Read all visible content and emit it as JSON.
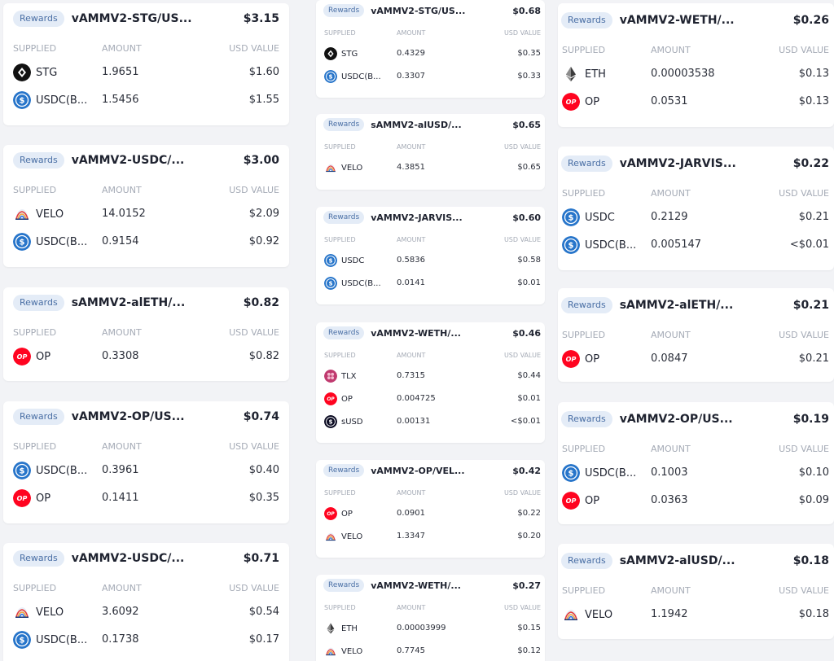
{
  "labels": {
    "badge": "Rewards",
    "supplied": "SUPPLIED",
    "amount": "AMOUNT",
    "usd_value": "USD VALUE"
  },
  "colors": {
    "badge_bg": "#e4ecf7",
    "badge_text": "#4a6fa5",
    "op": "#ff0420",
    "usdc": "#2775ca",
    "header_gray": "#a5abb6"
  },
  "columns": [
    {
      "cards": [
        {
          "pool": "vAMMV2-STG/US...",
          "total": "$3.15",
          "rows": [
            {
              "icon": "stg-icon",
              "token": "STG",
              "amount": "1.9651",
              "usd": "$1.60"
            },
            {
              "icon": "usdc-icon",
              "token": "USDC(B...",
              "amount": "1.5456",
              "usd": "$1.55"
            }
          ]
        },
        {
          "pool": "vAMMV2-USDC/...",
          "total": "$3.00",
          "rows": [
            {
              "icon": "velo-icon",
              "token": "VELO",
              "amount": "14.0152",
              "usd": "$2.09"
            },
            {
              "icon": "usdc-icon",
              "token": "USDC(B...",
              "amount": "0.9154",
              "usd": "$0.92"
            }
          ]
        },
        {
          "pool": "sAMMV2-alETH/...",
          "total": "$0.82",
          "rows": [
            {
              "icon": "op-icon",
              "token": "OP",
              "amount": "0.3308",
              "usd": "$0.82"
            }
          ]
        },
        {
          "pool": "vAMMV2-OP/US...",
          "total": "$0.74",
          "rows": [
            {
              "icon": "usdc-icon",
              "token": "USDC(B...",
              "amount": "0.3961",
              "usd": "$0.40"
            },
            {
              "icon": "op-icon",
              "token": "OP",
              "amount": "0.1411",
              "usd": "$0.35"
            }
          ]
        },
        {
          "pool": "vAMMV2-USDC/...",
          "total": "$0.71",
          "rows": [
            {
              "icon": "velo-icon",
              "token": "VELO",
              "amount": "3.6092",
              "usd": "$0.54"
            },
            {
              "icon": "usdc-icon",
              "token": "USDC(B...",
              "amount": "0.1738",
              "usd": "$0.17"
            }
          ]
        }
      ]
    },
    {
      "cards": [
        {
          "pool": "vAMMV2-STG/US...",
          "total": "$0.68",
          "rows": [
            {
              "icon": "stg-icon",
              "token": "STG",
              "amount": "0.4329",
              "usd": "$0.35"
            },
            {
              "icon": "usdc-icon",
              "token": "USDC(B...",
              "amount": "0.3307",
              "usd": "$0.33"
            }
          ]
        },
        {
          "pool": "sAMMV2-alUSD/...",
          "total": "$0.65",
          "rows": [
            {
              "icon": "velo-icon",
              "token": "VELO",
              "amount": "4.3851",
              "usd": "$0.65"
            }
          ]
        },
        {
          "pool": "vAMMV2-JARVIS...",
          "total": "$0.60",
          "rows": [
            {
              "icon": "usdc-icon",
              "token": "USDC",
              "amount": "0.5836",
              "usd": "$0.58"
            },
            {
              "icon": "usdc-icon",
              "token": "USDC(B...",
              "amount": "0.0141",
              "usd": "$0.01"
            }
          ]
        },
        {
          "pool": "vAMMV2-WETH/...",
          "total": "$0.46",
          "rows": [
            {
              "icon": "tlx-icon",
              "token": "TLX",
              "amount": "0.7315",
              "usd": "$0.44"
            },
            {
              "icon": "op-icon",
              "token": "OP",
              "amount": "0.004725",
              "usd": "$0.01"
            },
            {
              "icon": "susd-icon",
              "token": "sUSD",
              "amount": "0.00131",
              "usd": "<$0.01"
            }
          ]
        },
        {
          "pool": "vAMMV2-OP/VEL...",
          "total": "$0.42",
          "rows": [
            {
              "icon": "op-icon",
              "token": "OP",
              "amount": "0.0901",
              "usd": "$0.22"
            },
            {
              "icon": "velo-icon",
              "token": "VELO",
              "amount": "1.3347",
              "usd": "$0.20"
            }
          ]
        },
        {
          "pool": "vAMMV2-WETH/...",
          "total": "$0.27",
          "rows": [
            {
              "icon": "eth-icon",
              "token": "ETH",
              "amount": "0.00003999",
              "usd": "$0.15"
            },
            {
              "icon": "velo-icon",
              "token": "VELO",
              "amount": "0.7745",
              "usd": "$0.12"
            }
          ]
        }
      ]
    },
    {
      "cards": [
        {
          "pool": "vAMMV2-WETH/...",
          "total": "$0.26",
          "rows": [
            {
              "icon": "eth-icon",
              "token": "ETH",
              "amount": "0.00003538",
              "usd": "$0.13"
            },
            {
              "icon": "op-icon",
              "token": "OP",
              "amount": "0.0531",
              "usd": "$0.13"
            }
          ]
        },
        {
          "pool": "vAMMV2-JARVIS...",
          "total": "$0.22",
          "rows": [
            {
              "icon": "usdc-icon",
              "token": "USDC",
              "amount": "0.2129",
              "usd": "$0.21"
            },
            {
              "icon": "usdc-icon",
              "token": "USDC(B...",
              "amount": "0.005147",
              "usd": "<$0.01"
            }
          ]
        },
        {
          "pool": "sAMMV2-alETH/...",
          "total": "$0.21",
          "rows": [
            {
              "icon": "op-icon",
              "token": "OP",
              "amount": "0.0847",
              "usd": "$0.21"
            }
          ]
        },
        {
          "pool": "vAMMV2-OP/US...",
          "total": "$0.19",
          "rows": [
            {
              "icon": "usdc-icon",
              "token": "USDC(B...",
              "amount": "0.1003",
              "usd": "$0.10"
            },
            {
              "icon": "op-icon",
              "token": "OP",
              "amount": "0.0363",
              "usd": "$0.09"
            }
          ]
        },
        {
          "pool": "sAMMV2-alUSD/...",
          "total": "$0.18",
          "rows": [
            {
              "icon": "velo-icon",
              "token": "VELO",
              "amount": "1.1942",
              "usd": "$0.18"
            }
          ]
        }
      ]
    }
  ]
}
